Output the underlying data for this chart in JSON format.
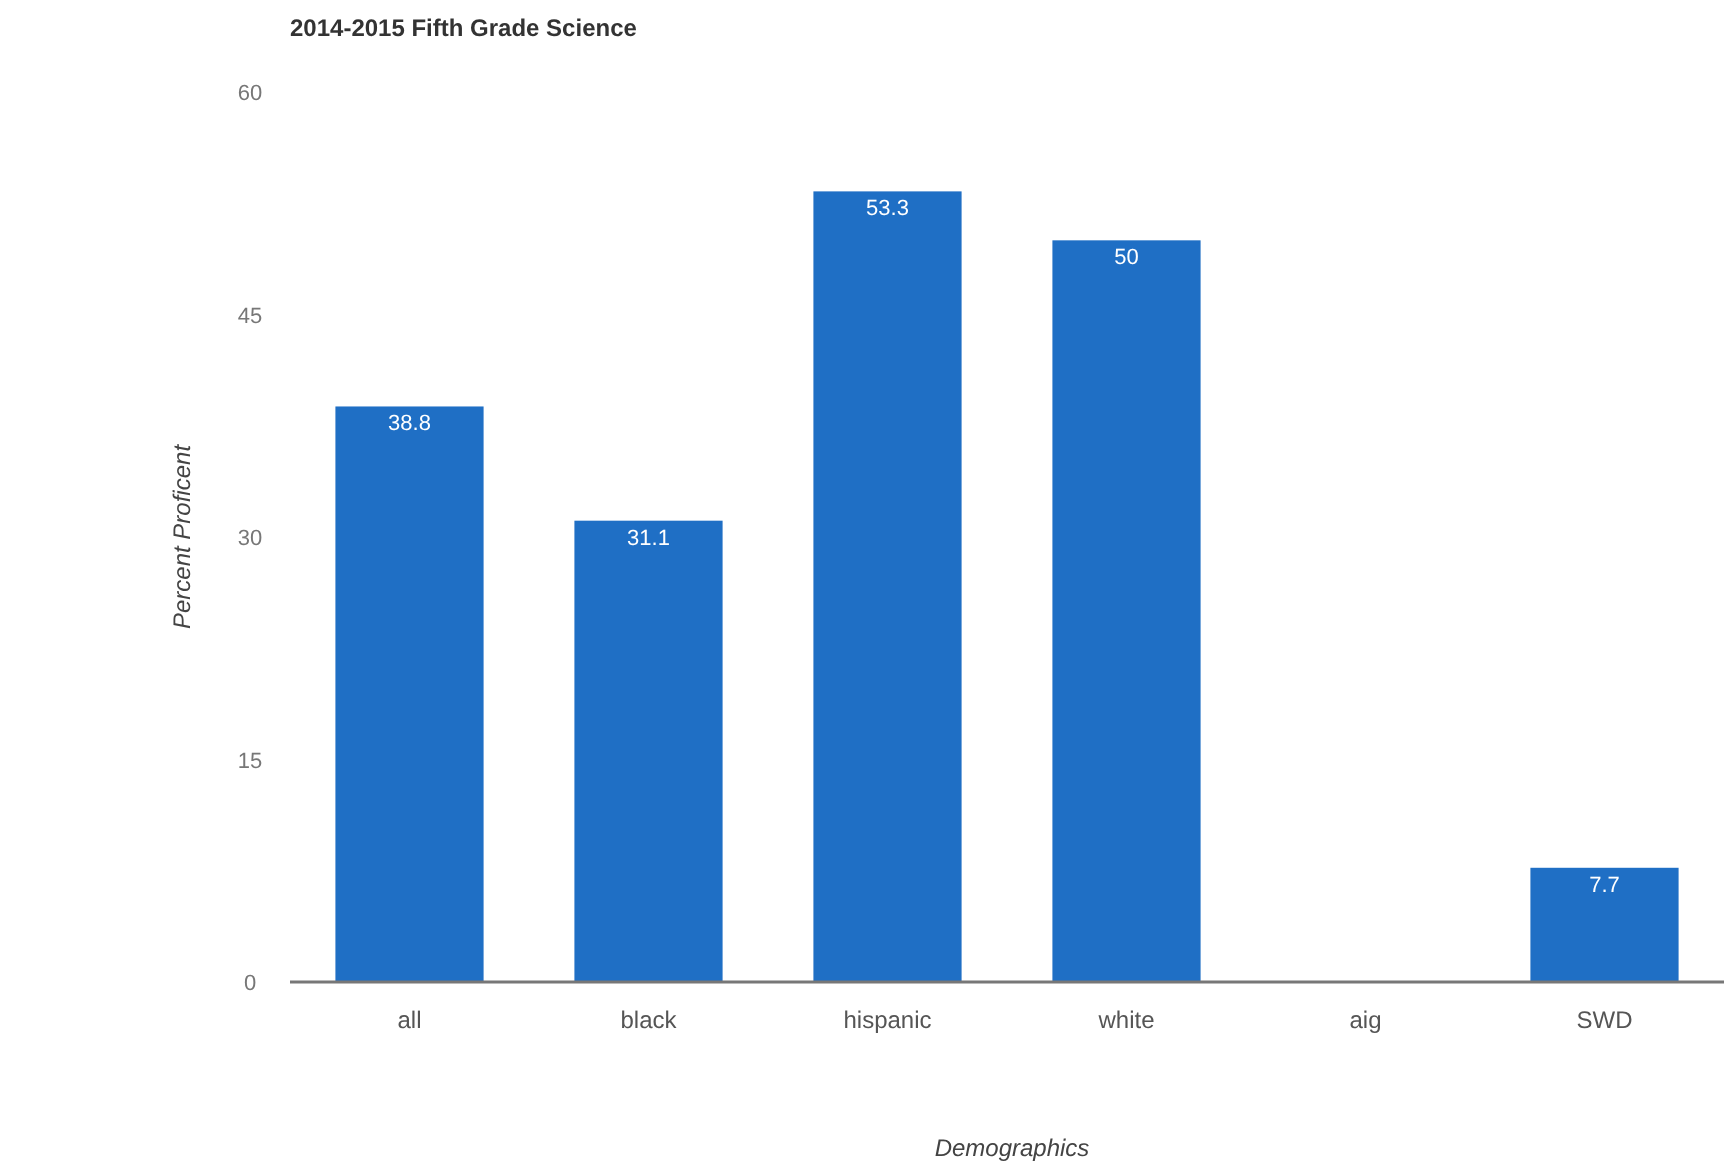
{
  "chart_data": {
    "type": "bar",
    "title": "2014-2015 Fifth Grade Science",
    "xlabel": "Demographics",
    "ylabel": "Percent Proficent",
    "categories": [
      "all",
      "black",
      "hispanic",
      "white",
      "aig",
      "SWD"
    ],
    "values": [
      38.8,
      31.1,
      53.3,
      50,
      null,
      7.7
    ],
    "color": "#1f6fc5",
    "data_labels": true,
    "ylim": [
      0,
      60
    ],
    "yticks": [
      0,
      15,
      30,
      45,
      60
    ],
    "grid": false
  }
}
